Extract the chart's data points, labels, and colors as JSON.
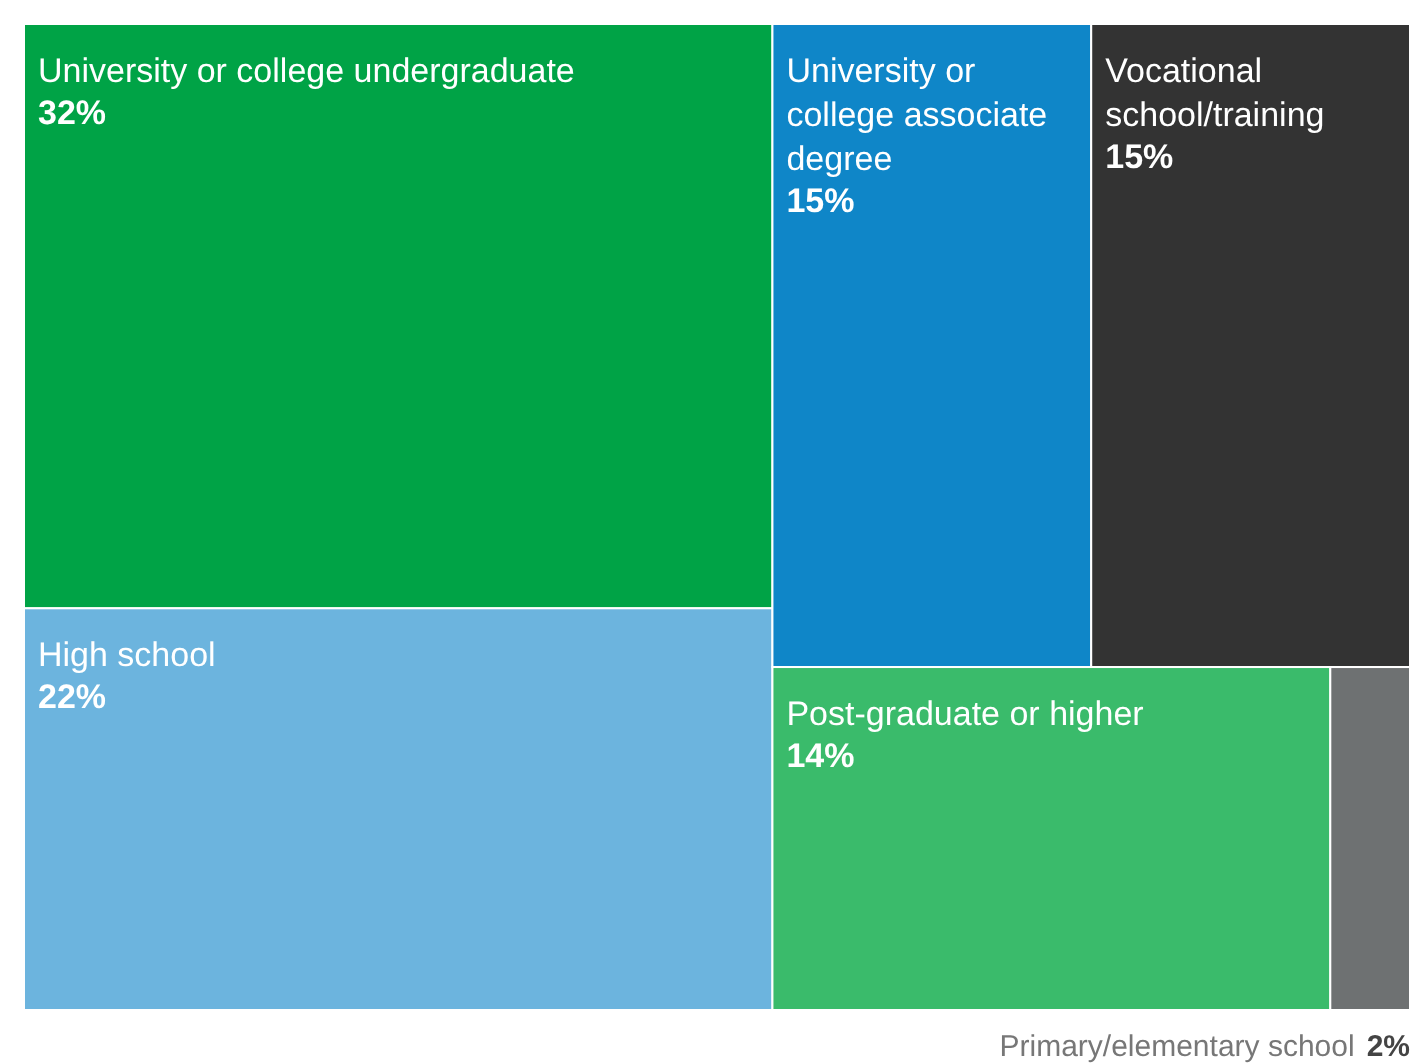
{
  "chart_data": {
    "type": "other",
    "categories": [
      "University or college undergraduate",
      "High school",
      "University or college associate degree",
      "Vocational school/training",
      "Post-graduate or higher",
      "Primary/elementary school"
    ],
    "values": [
      32,
      22,
      15,
      15,
      14,
      2
    ],
    "value_labels": [
      "32%",
      "22%",
      "15%",
      "15%",
      "14%",
      "2%"
    ],
    "colors": [
      "#00a346",
      "#6cb4de",
      "#0f86c8",
      "#333333",
      "#3abb6b",
      "#6e7172"
    ]
  }
}
